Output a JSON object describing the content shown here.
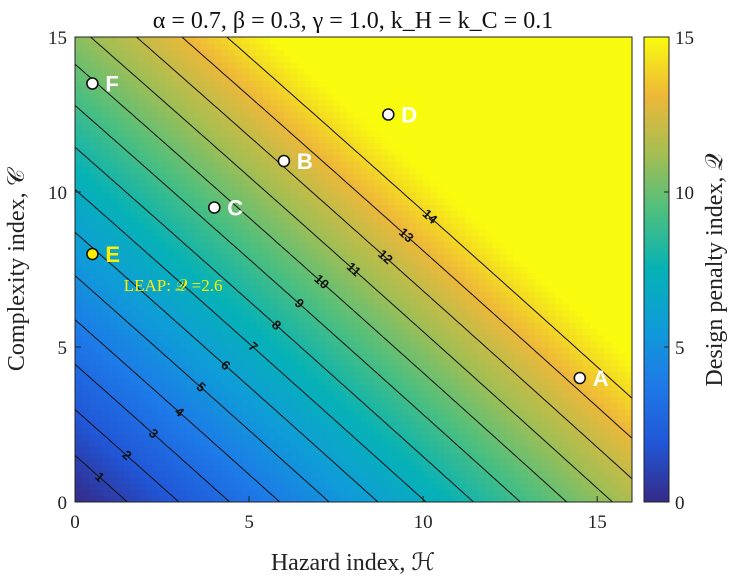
{
  "chart_data": {
    "type": "heatmap",
    "title": "α = 0.7, β = 0.3, γ = 1.0, k_H = k_C = 0.1",
    "xlabel": "Hazard index, ℋ",
    "ylabel": "Complexity index, 𝒞",
    "colorbar_label": "Design penalty index, 𝒬",
    "xlim": [
      0,
      16
    ],
    "ylim": [
      0,
      15
    ],
    "clim": [
      0,
      15
    ],
    "xticks": [
      "0",
      "5",
      "10",
      "15"
    ],
    "yticks": [
      "0",
      "5",
      "10",
      "15"
    ],
    "cticks": [
      "0",
      "5",
      "10",
      "15"
    ],
    "contour_levels": [
      1,
      2,
      3,
      4,
      5,
      6,
      7,
      8,
      9,
      10,
      11,
      12,
      13,
      14
    ],
    "colormap": "parula",
    "points": [
      {
        "label": "A",
        "x": 14.5,
        "y": 4.0,
        "marker_color": "#ffffff",
        "label_color": "#ffffff"
      },
      {
        "label": "B",
        "x": 6.0,
        "y": 11.0,
        "marker_color": "#ffffff",
        "label_color": "#ffffff"
      },
      {
        "label": "C",
        "x": 4.0,
        "y": 9.5,
        "marker_color": "#ffffff",
        "label_color": "#ffffff"
      },
      {
        "label": "D",
        "x": 9.0,
        "y": 12.5,
        "marker_color": "#ffffff",
        "label_color": "#ffffff"
      },
      {
        "label": "E",
        "x": 0.5,
        "y": 8.0,
        "marker_color": "#ffee00",
        "label_color": "#ffee00"
      },
      {
        "label": "F",
        "x": 0.5,
        "y": 13.5,
        "marker_color": "#ffffff",
        "label_color": "#ffffff"
      }
    ],
    "annotations": [
      {
        "text": "LEAP: 𝒬 =2.6",
        "x": 1.4,
        "y": 6.8,
        "color": "#ffee00"
      }
    ]
  }
}
